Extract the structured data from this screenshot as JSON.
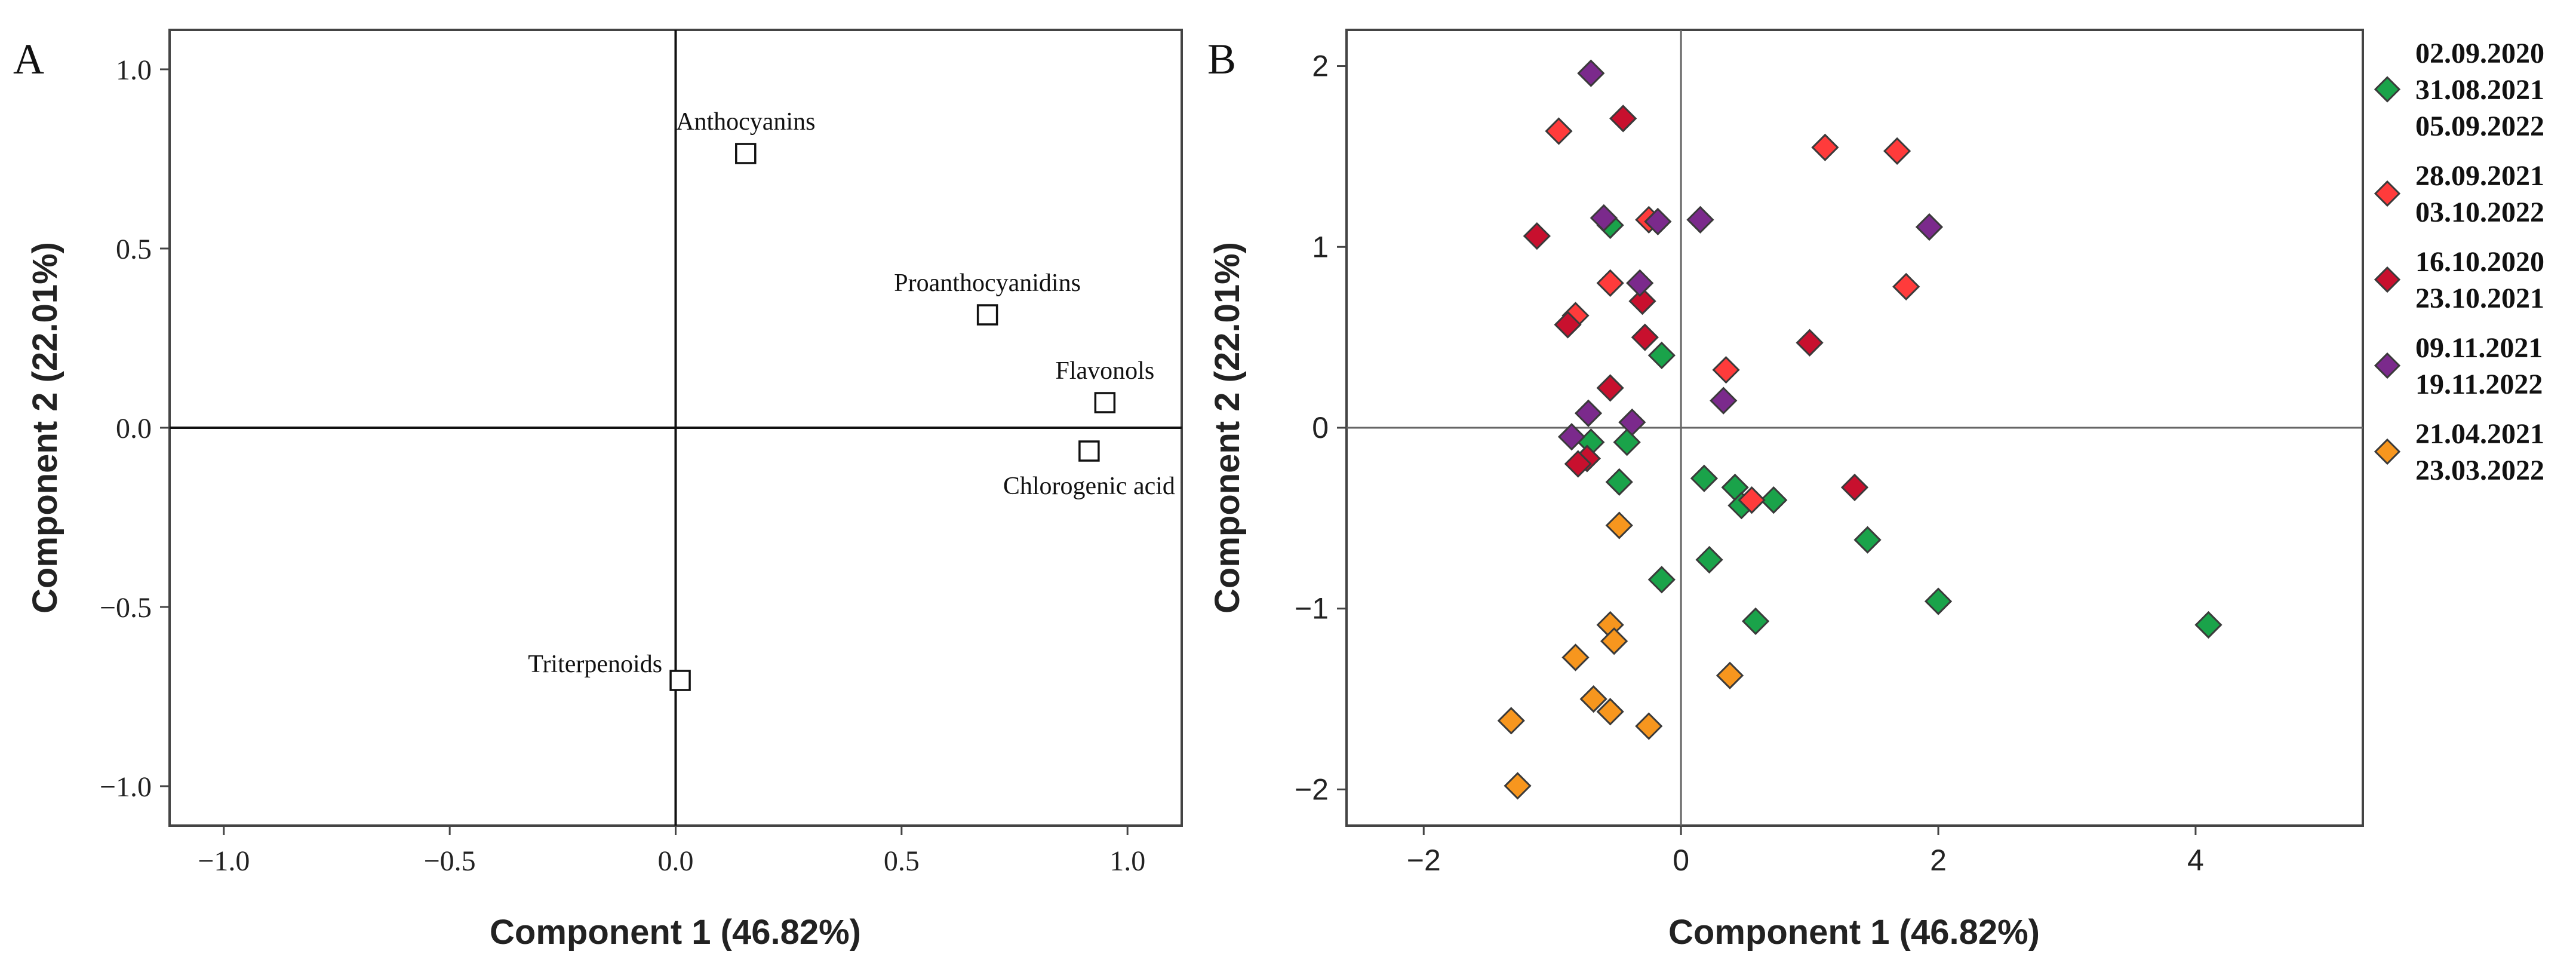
{
  "chart_data": [
    {
      "panel": "A",
      "type": "scatter",
      "title": "",
      "xlabel": "Component 1 (46.82%)",
      "ylabel": "Component 2 (22.01%)",
      "xlim": [
        -1.12,
        1.12
      ],
      "ylim": [
        -1.11,
        1.11
      ],
      "xticks": [
        -1.0,
        -0.5,
        0.0,
        0.5,
        1.0
      ],
      "yticks": [
        -1.0,
        -0.5,
        0.0,
        0.5,
        1.0
      ],
      "xtick_labels": [
        "−1.0",
        "−0.5",
        "0.0",
        "0.5",
        "1.0"
      ],
      "ytick_labels": [
        "−1.0",
        "−0.5",
        "0.0",
        "0.5",
        "1.0"
      ],
      "reference_lines": {
        "x": 0,
        "y": 0
      },
      "points": [
        {
          "label": "Anthocyanins",
          "x": 0.155,
          "y": 0.765,
          "label_pos": "above"
        },
        {
          "label": "Proanthocyanidins",
          "x": 0.69,
          "y": 0.315,
          "label_pos": "above"
        },
        {
          "label": "Flavonols",
          "x": 0.95,
          "y": 0.07,
          "label_pos": "above"
        },
        {
          "label": "Chlorogenic acid",
          "x": 0.915,
          "y": -0.065,
          "label_pos": "below"
        },
        {
          "label": "Triterpenoids",
          "x": 0.01,
          "y": -0.705,
          "label_pos": "left"
        }
      ]
    },
    {
      "panel": "B",
      "type": "scatter",
      "title": "",
      "xlabel": "Component 1 (46.82%)",
      "ylabel": "Component 2 (22.01%)",
      "xlim": [
        -2.6,
        5.3
      ],
      "ylim": [
        -2.2,
        2.2
      ],
      "xticks": [
        -2,
        0,
        2,
        4
      ],
      "yticks": [
        -2,
        -1,
        0,
        1,
        2
      ],
      "xtick_labels": [
        "−2",
        "0",
        "2",
        "4"
      ],
      "ytick_labels": [
        "−2",
        "−1",
        "0",
        "1",
        "2"
      ],
      "reference_lines": {
        "x": 0,
        "y": 0
      },
      "legend_position": "right",
      "series": [
        {
          "name": "02.09.2020 / 31.08.2021 / 05.09.2022",
          "legend_lines": [
            "02.09.2020",
            "31.08.2021",
            "05.09.2022"
          ],
          "color": "#1aa34a",
          "points": [
            [
              -0.55,
              1.12
            ],
            [
              -0.15,
              0.4
            ],
            [
              -0.7,
              -0.08
            ],
            [
              -0.42,
              -0.08
            ],
            [
              -0.48,
              -0.3
            ],
            [
              0.18,
              -0.28
            ],
            [
              0.42,
              -0.33
            ],
            [
              0.47,
              -0.43
            ],
            [
              0.72,
              -0.4
            ],
            [
              1.45,
              -0.62
            ],
            [
              -0.15,
              -0.84
            ],
            [
              0.22,
              -0.73
            ],
            [
              0.58,
              -1.07
            ],
            [
              2.0,
              -0.96
            ],
            [
              4.1,
              -1.09
            ]
          ]
        },
        {
          "name": "28.09.2021 / 03.10.2022",
          "legend_lines": [
            "28.09.2021",
            "03.10.2022"
          ],
          "color": "#ff3b3b",
          "points": [
            [
              -0.95,
              1.64
            ],
            [
              1.12,
              1.55
            ],
            [
              1.68,
              1.53
            ],
            [
              -0.25,
              1.15
            ],
            [
              -0.55,
              0.8
            ],
            [
              -0.82,
              0.62
            ],
            [
              1.75,
              0.78
            ],
            [
              0.35,
              0.32
            ],
            [
              0.55,
              -0.4
            ]
          ]
        },
        {
          "name": "16.10.2020 / 23.10.2021",
          "legend_lines": [
            "16.10.2020",
            "23.10.2021"
          ],
          "color": "#c8102e",
          "points": [
            [
              -0.45,
              1.71
            ],
            [
              -1.12,
              1.06
            ],
            [
              -0.3,
              0.7
            ],
            [
              -0.88,
              0.57
            ],
            [
              -0.28,
              0.5
            ],
            [
              1.0,
              0.47
            ],
            [
              -0.55,
              0.22
            ],
            [
              -0.73,
              -0.17
            ],
            [
              -0.8,
              -0.2
            ],
            [
              1.35,
              -0.33
            ]
          ]
        },
        {
          "name": "09.11.2021 / 19.11.2022",
          "legend_lines": [
            "09.11.2021",
            "19.11.2022"
          ],
          "color": "#7b2a8c",
          "points": [
            [
              -0.7,
              1.96
            ],
            [
              -0.6,
              1.16
            ],
            [
              -0.18,
              1.14
            ],
            [
              0.15,
              1.15
            ],
            [
              1.93,
              1.11
            ],
            [
              -0.32,
              0.8
            ],
            [
              0.33,
              0.15
            ],
            [
              -0.72,
              0.08
            ],
            [
              -0.38,
              0.03
            ],
            [
              -0.85,
              -0.05
            ]
          ]
        },
        {
          "name": "21.04.2021 / 23.03.2022",
          "legend_lines": [
            "21.04.2021",
            "23.03.2022"
          ],
          "color": "#f7961e",
          "points": [
            [
              -0.48,
              -0.54
            ],
            [
              -0.55,
              -1.09
            ],
            [
              -0.52,
              -1.18
            ],
            [
              -0.82,
              -1.27
            ],
            [
              0.38,
              -1.37
            ],
            [
              -0.68,
              -1.5
            ],
            [
              -0.55,
              -1.57
            ],
            [
              -0.25,
              -1.65
            ],
            [
              -1.32,
              -1.62
            ],
            [
              -1.27,
              -1.98
            ]
          ]
        }
      ]
    }
  ],
  "panel_labels": {
    "a": "A",
    "b": "B"
  }
}
